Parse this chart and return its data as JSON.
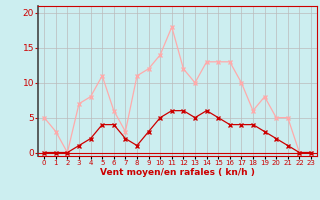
{
  "x": [
    0,
    1,
    2,
    3,
    4,
    5,
    6,
    7,
    8,
    9,
    10,
    11,
    12,
    13,
    14,
    15,
    16,
    17,
    18,
    19,
    20,
    21,
    22,
    23
  ],
  "vent_moyen": [
    0,
    0,
    0,
    1,
    2,
    4,
    4,
    2,
    1,
    3,
    5,
    6,
    6,
    5,
    6,
    5,
    4,
    4,
    4,
    3,
    2,
    1,
    0,
    0
  ],
  "rafales": [
    5,
    3,
    0,
    7,
    8,
    11,
    6,
    3,
    11,
    12,
    14,
    18,
    12,
    10,
    13,
    13,
    13,
    10,
    6,
    8,
    5,
    5,
    0,
    0
  ],
  "line_color_moyen": "#cc0000",
  "line_color_rafales": "#ffaaaa",
  "bg_color": "#cceef0",
  "grid_color": "#bbbbbb",
  "xlabel": "Vent moyen/en rafales ( kn/h )",
  "xlabel_color": "#cc0000",
  "yticks": [
    0,
    5,
    10,
    15,
    20
  ],
  "ylim": [
    -0.5,
    21
  ],
  "xlim": [
    -0.5,
    23.5
  ]
}
